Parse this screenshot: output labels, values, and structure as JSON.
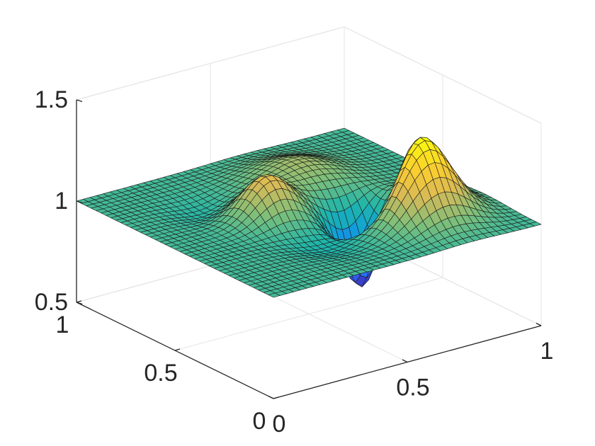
{
  "chart_data": {
    "type": "surface",
    "title": "",
    "xlabel": "",
    "ylabel": "",
    "zlabel": "",
    "xlim": [
      0,
      1
    ],
    "ylim": [
      0,
      1
    ],
    "zlim": [
      0.5,
      1.5
    ],
    "x_ticks": [
      {
        "value": 0,
        "label": "0"
      },
      {
        "value": 0.5,
        "label": "0.5"
      },
      {
        "value": 1,
        "label": "1"
      }
    ],
    "y_ticks": [
      {
        "value": 0,
        "label": "0"
      },
      {
        "value": 0.5,
        "label": "0.5"
      },
      {
        "value": 1,
        "label": "1"
      }
    ],
    "z_ticks": [
      {
        "value": 0.5,
        "label": "0.5"
      },
      {
        "value": 1,
        "label": "1"
      },
      {
        "value": 1.5,
        "label": "1.5"
      }
    ],
    "grid": true,
    "box": true,
    "colormap": "parula",
    "colormap_stops": [
      "#3e26a8",
      "#2f6afe",
      "#0f9fd9",
      "#20b5a9",
      "#7cbf7b",
      "#d9ba56",
      "#fcce2e",
      "#f9fb0e"
    ],
    "mesh_resolution": 40,
    "surface": {
      "baseline": 1.0,
      "bumps": [
        {
          "x": 0.74,
          "y": 0.28,
          "amplitude": 0.42,
          "width": 0.1
        },
        {
          "x": 0.38,
          "y": 0.55,
          "amplitude": 0.2,
          "width": 0.08
        },
        {
          "x": 0.62,
          "y": 0.72,
          "amplitude": 0.11,
          "width": 0.12
        },
        {
          "x": 0.64,
          "y": 0.4,
          "amplitude": -0.48,
          "width": 0.07
        },
        {
          "x": 0.42,
          "y": 0.3,
          "amplitude": -0.05,
          "width": 0.1
        },
        {
          "x": 0.28,
          "y": 0.7,
          "amplitude": -0.04,
          "width": 0.08
        }
      ]
    }
  }
}
